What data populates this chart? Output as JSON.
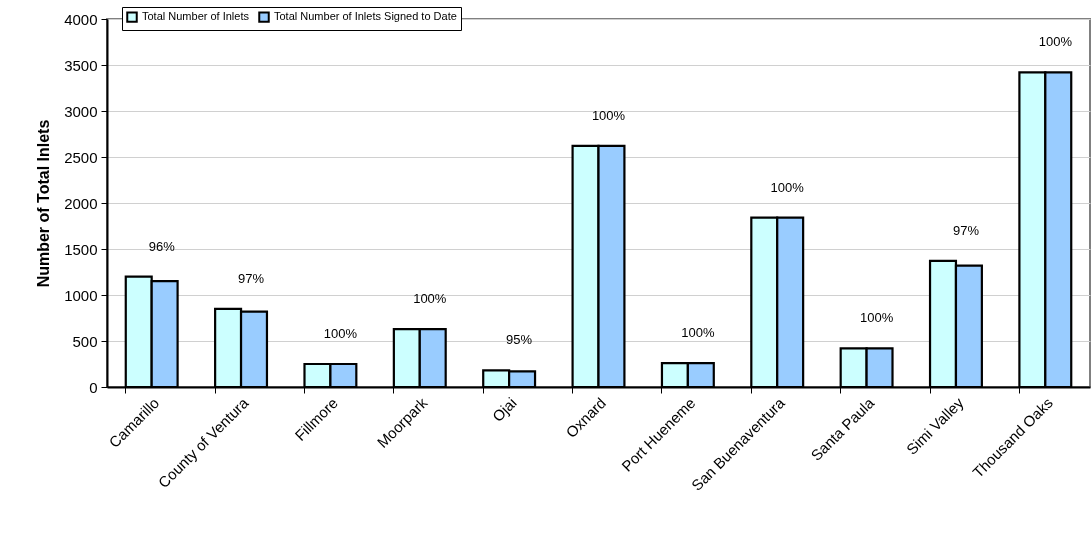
{
  "chart_data": {
    "type": "bar",
    "ylabel": "Number of Total Inlets",
    "categories": [
      "Camarillo",
      "County of Ventura",
      "Fillmore",
      "Moorpark",
      "Ojai",
      "Oxnard",
      "Port Hueneme",
      "San Buenaventura",
      "Santa Paula",
      "Simi Valley",
      "Thousand Oaks"
    ],
    "series": [
      {
        "name": "Total Number of Inlets",
        "color": "#ccffff",
        "values": [
          1200,
          850,
          250,
          630,
          180,
          2620,
          260,
          1840,
          420,
          1370,
          3420
        ]
      },
      {
        "name": "Total Number of Inlets Signed to Date",
        "color": "#99ccff",
        "values": [
          1150,
          820,
          250,
          630,
          170,
          2620,
          260,
          1840,
          420,
          1320,
          3420
        ]
      }
    ],
    "annotations": [
      {
        "text": "96%",
        "x": "Camarillo",
        "y": 1200
      },
      {
        "text": "97%",
        "x": "County of Ventura",
        "y": 850
      },
      {
        "text": "100%",
        "x": "Fillmore",
        "y": 250
      },
      {
        "text": "100%",
        "x": "Moorpark",
        "y": 630
      },
      {
        "text": "95%",
        "x": "Ojai",
        "y": 180
      },
      {
        "text": "100%",
        "x": "Oxnard",
        "y": 2620
      },
      {
        "text": "100%",
        "x": "Port Hueneme",
        "y": 260
      },
      {
        "text": "100%",
        "x": "San Buenaventura",
        "y": 1840
      },
      {
        "text": "100%",
        "x": "Santa Paula",
        "y": 420
      },
      {
        "text": "97%",
        "x": "Simi Valley",
        "y": 1370
      },
      {
        "text": "100%",
        "x": "Thousand Oaks",
        "y": 3420
      }
    ],
    "ylim": [
      0,
      4000
    ],
    "yticks": [
      0,
      500,
      1000,
      1500,
      2000,
      2500,
      3000,
      3500,
      4000
    ],
    "grid": "y",
    "legend": "top left"
  }
}
